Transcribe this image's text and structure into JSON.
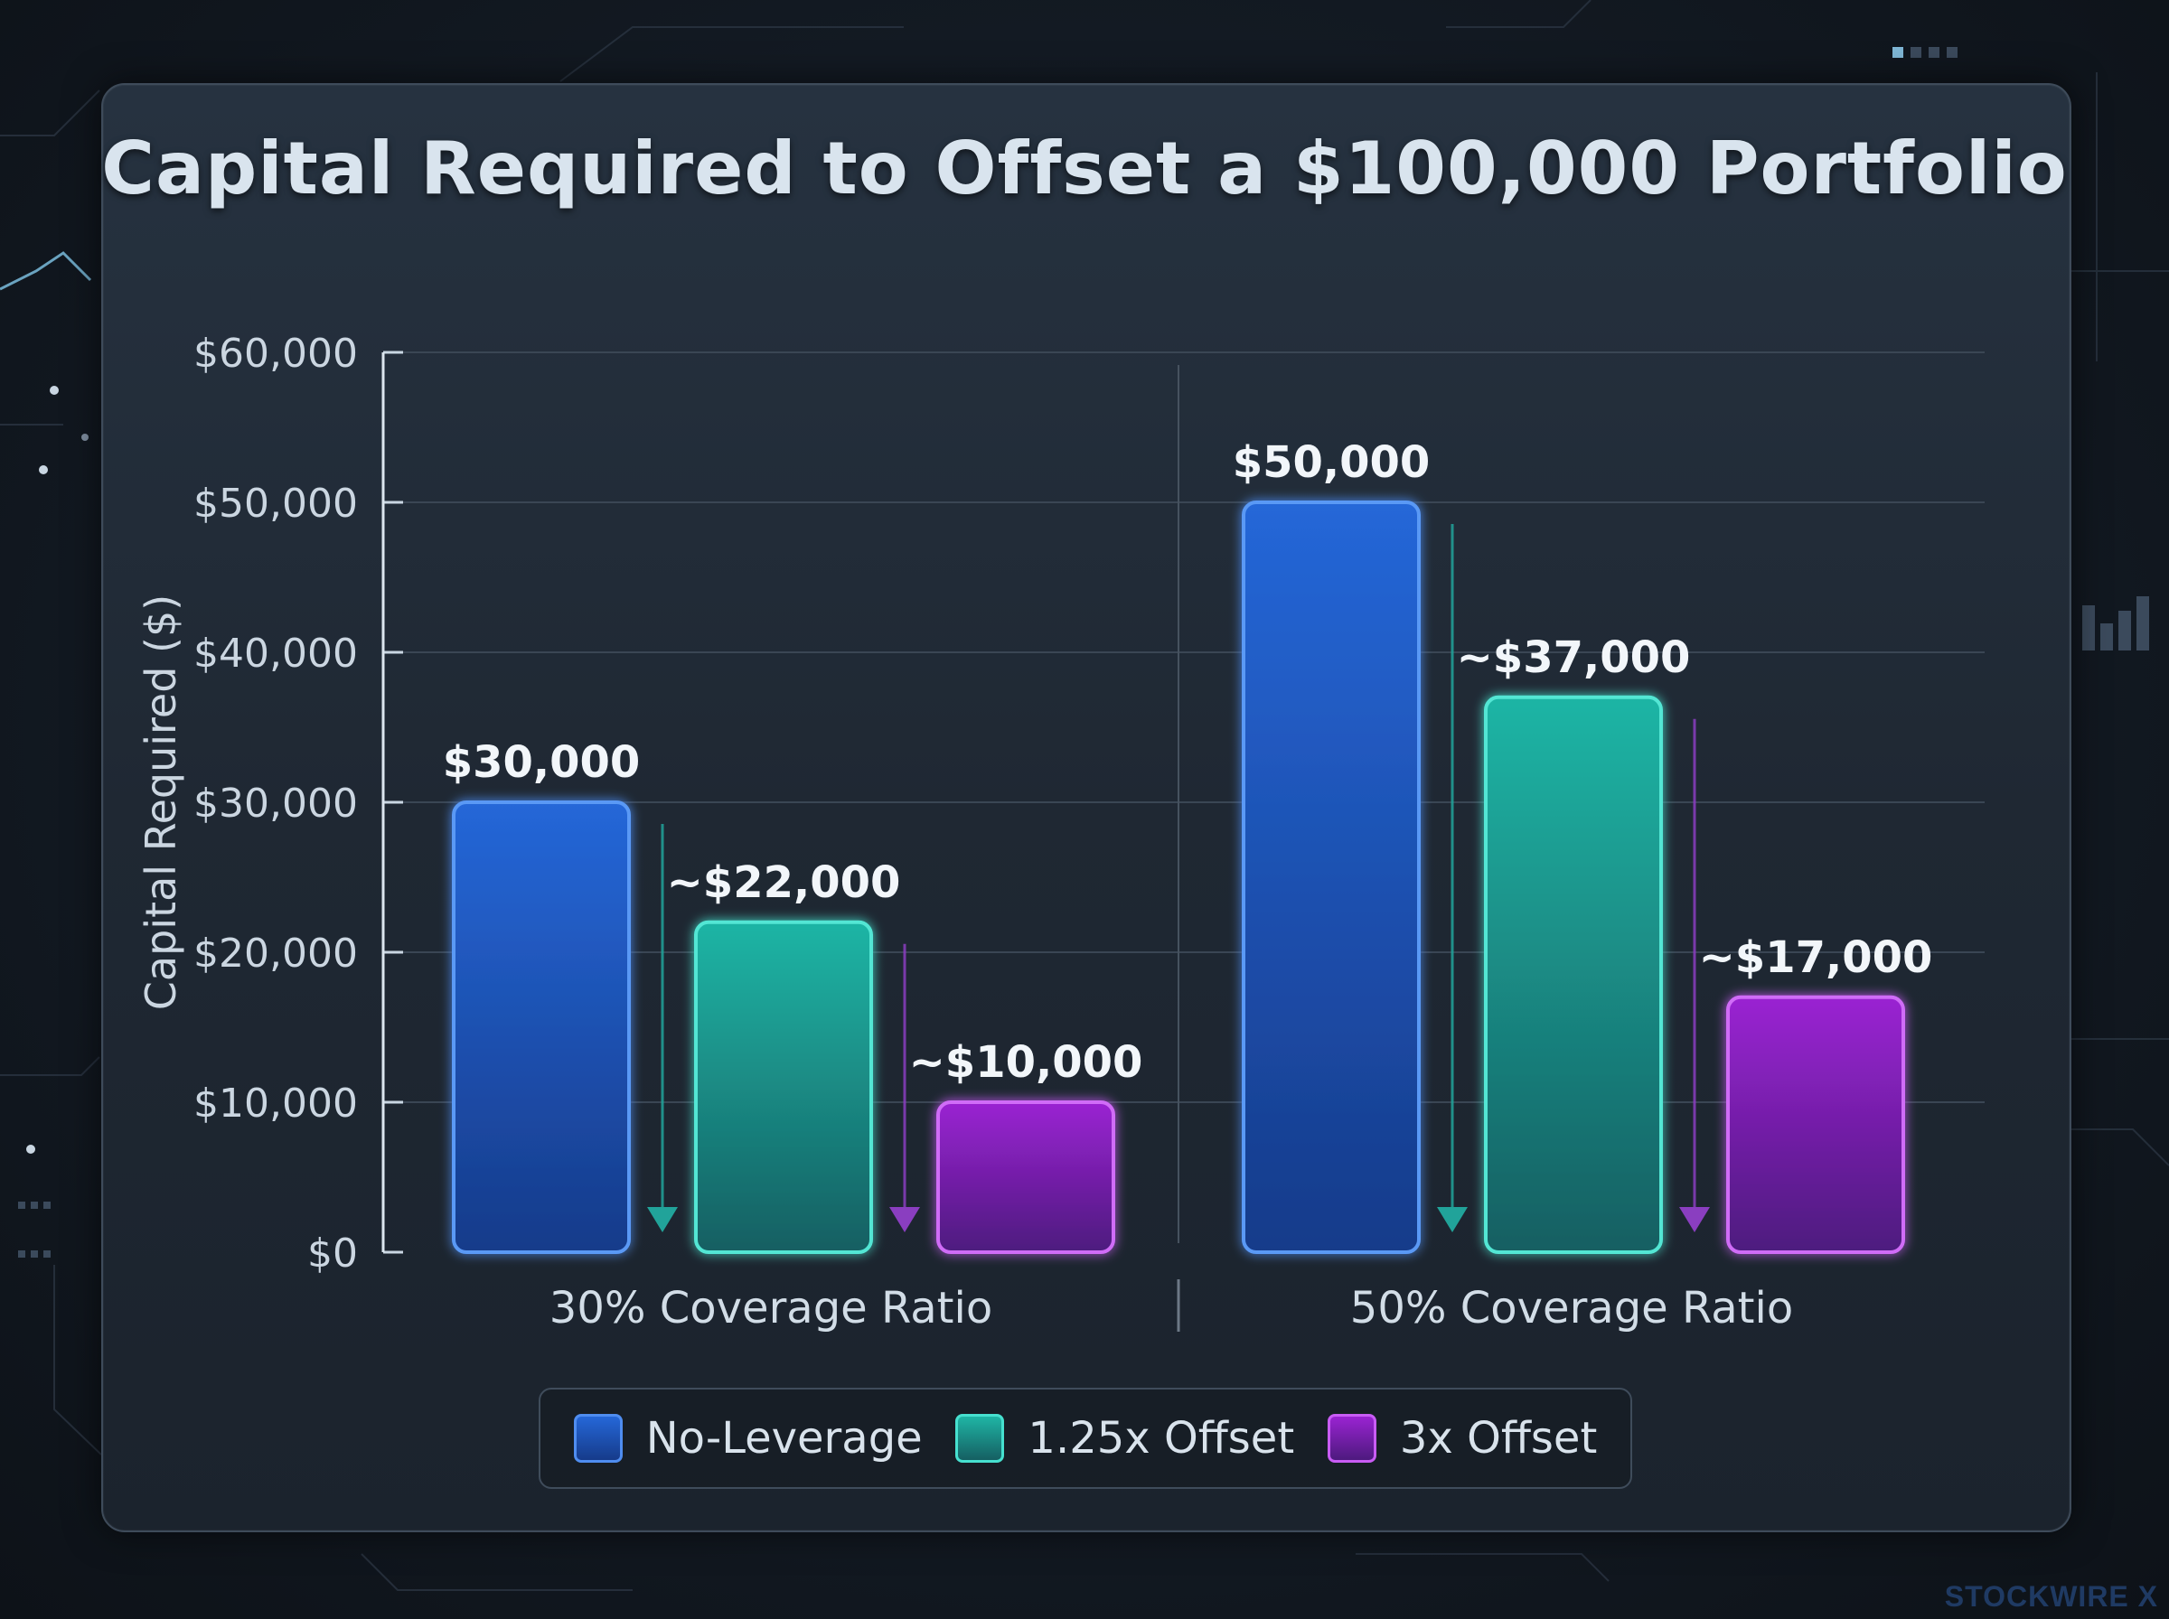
{
  "chart_data": {
    "type": "bar",
    "title": "Capital Required to Offset a $100,000 Portfolio",
    "ylabel": "Capital Required ($)",
    "xlabel": "",
    "ylim": [
      0,
      60000
    ],
    "yticks": [
      0,
      10000,
      20000,
      30000,
      40000,
      50000,
      60000
    ],
    "ytick_labels": [
      "$0",
      "$10,000",
      "$20,000",
      "$30,000",
      "$40,000",
      "$50,000",
      "$60,000"
    ],
    "categories": [
      "30% Coverage Ratio",
      "50% Coverage Ratio"
    ],
    "grid": true,
    "legend_position": "bottom",
    "series": [
      {
        "name": "No-Leverage",
        "values": [
          30000,
          50000
        ],
        "labels": [
          "$30,000",
          "$50,000"
        ],
        "color": "#1e5fd0"
      },
      {
        "name": "1.25x Offset",
        "values": [
          22000,
          37000
        ],
        "labels": [
          "~$22,000",
          "~$37,000"
        ],
        "color": "#17a79a"
      },
      {
        "name": "3x Offset",
        "values": [
          10000,
          17000
        ],
        "labels": [
          "~$10,000",
          "~$17,000"
        ],
        "color": "#8a1fc4"
      }
    ]
  },
  "legend": [
    {
      "label": "No-Leverage",
      "color": "#1e5fd0"
    },
    {
      "label": "1.25x Offset",
      "color": "#17a79a"
    },
    {
      "label": "3x Offset",
      "color": "#8a1fc4"
    }
  ],
  "watermark": "STOCKWIRE X"
}
